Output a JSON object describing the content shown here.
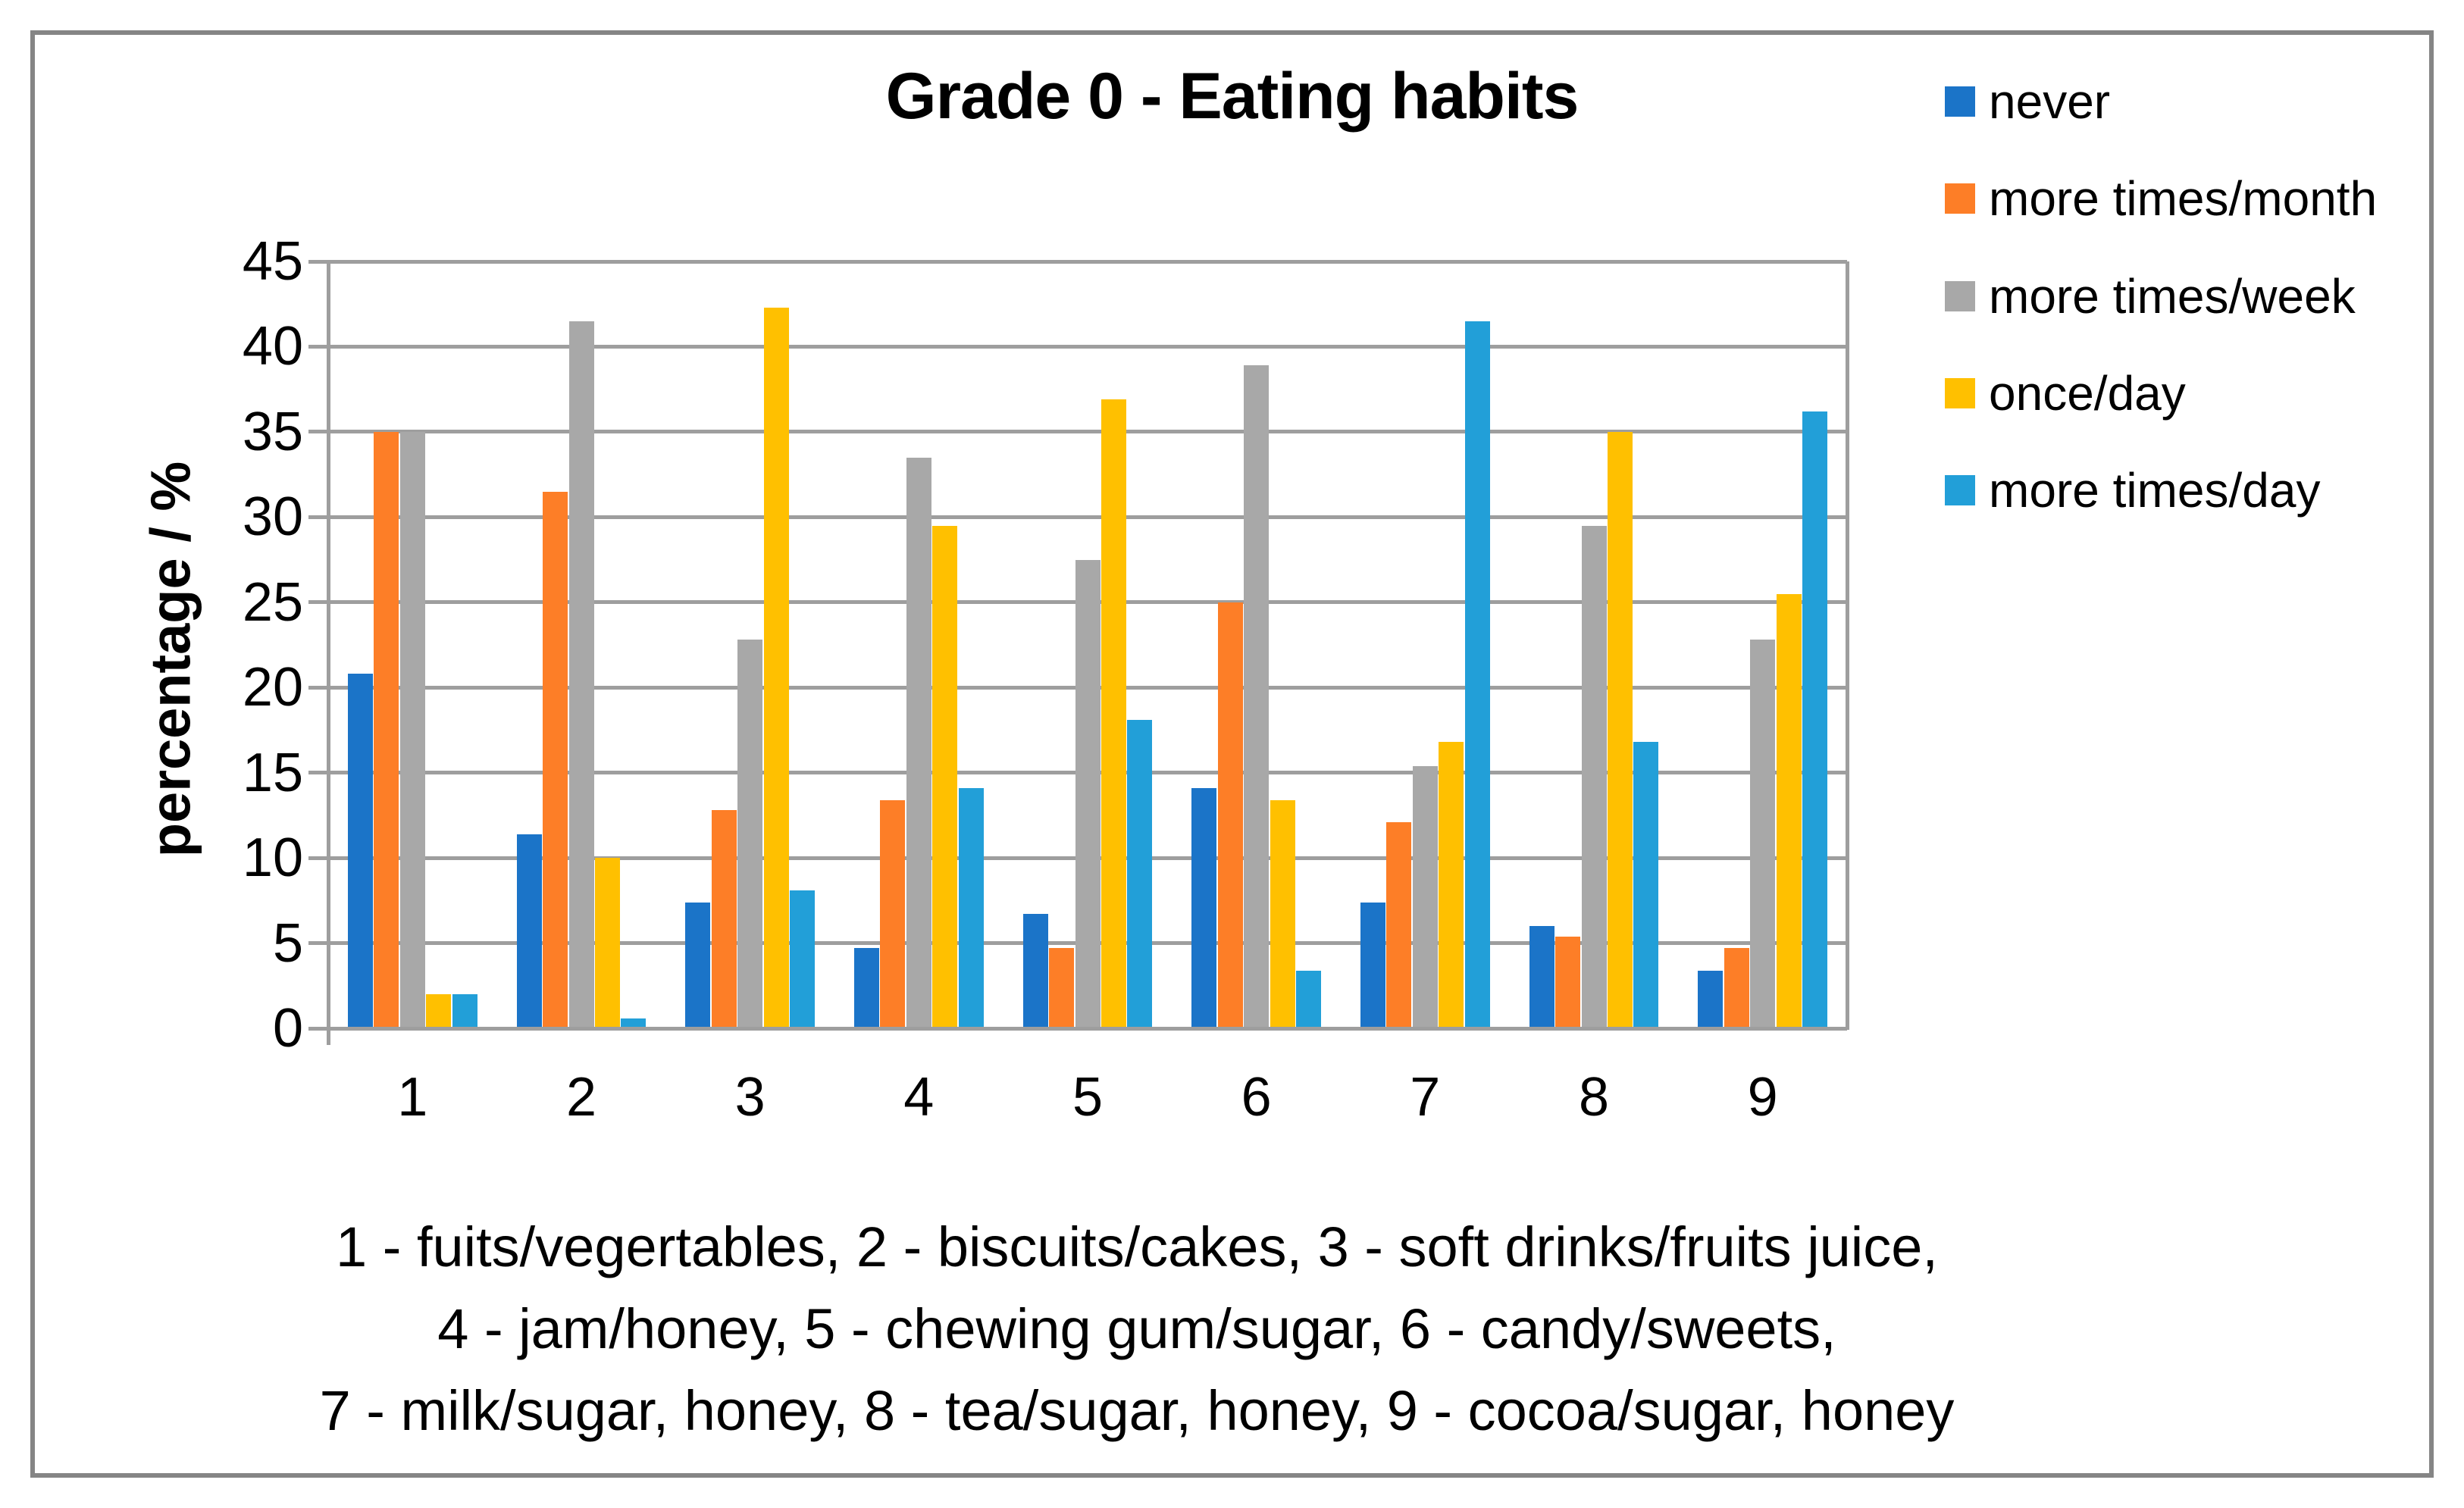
{
  "chart_data": {
    "type": "bar",
    "title": "Grade 0 - Eating habits",
    "ylabel": "percentage / %",
    "xlabel": "",
    "ylim": [
      0,
      45
    ],
    "ytick_step": 5,
    "grid": true,
    "legend_position": "right",
    "categories": [
      "1",
      "2",
      "3",
      "4",
      "5",
      "6",
      "7",
      "8",
      "9"
    ],
    "series": [
      {
        "name": "never",
        "color": "#1B74C8",
        "values": [
          20.8,
          11.4,
          7.4,
          4.7,
          6.7,
          14.1,
          7.4,
          6.0,
          3.4
        ]
      },
      {
        "name": "more times/month",
        "color": "#FD7E27",
        "values": [
          35.0,
          31.5,
          12.8,
          13.4,
          4.7,
          25.0,
          12.1,
          5.4,
          4.7
        ]
      },
      {
        "name": "more times/week",
        "color": "#A8A8A8",
        "values": [
          35.0,
          41.5,
          22.8,
          33.5,
          27.5,
          38.9,
          15.4,
          29.5,
          22.8
        ]
      },
      {
        "name": "once/day",
        "color": "#FFC000",
        "values": [
          2.0,
          10.0,
          42.3,
          29.5,
          36.9,
          13.4,
          16.8,
          35.0,
          25.5
        ]
      },
      {
        "name": "more times/day",
        "color": "#229FD8",
        "values": [
          2.0,
          0.6,
          8.1,
          14.1,
          18.1,
          3.4,
          41.5,
          16.8,
          36.2
        ]
      }
    ]
  },
  "caption_lines": [
    "1 - fuits/vegertables, 2 - biscuits/cakes, 3 - soft drinks/fruits juice,",
    "4 - jam/honey, 5 - chewing gum/sugar, 6 - candy/sweets,",
    "7 - milk/sugar, honey, 8 - tea/sugar, honey, 9 - cocoa/sugar, honey"
  ],
  "styles": {
    "grid_color": "#9E9E9E",
    "frame_color": "#858585",
    "text_color": "#000000",
    "background": "#FFFFFF"
  }
}
